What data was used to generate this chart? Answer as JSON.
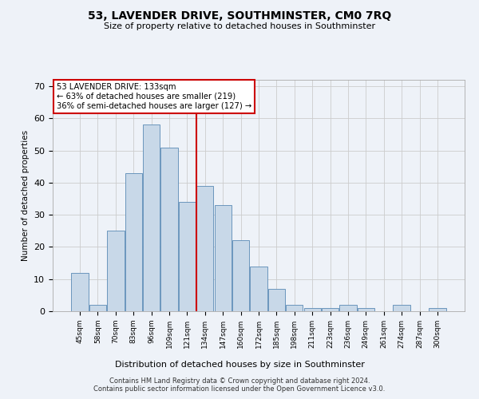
{
  "title": "53, LAVENDER DRIVE, SOUTHMINSTER, CM0 7RQ",
  "subtitle": "Size of property relative to detached houses in Southminster",
  "xlabel": "Distribution of detached houses by size in Southminster",
  "ylabel": "Number of detached properties",
  "bar_labels": [
    "45sqm",
    "58sqm",
    "70sqm",
    "83sqm",
    "96sqm",
    "109sqm",
    "121sqm",
    "134sqm",
    "147sqm",
    "160sqm",
    "172sqm",
    "185sqm",
    "198sqm",
    "211sqm",
    "223sqm",
    "236sqm",
    "249sqm",
    "261sqm",
    "274sqm",
    "287sqm",
    "300sqm"
  ],
  "bar_heights": [
    12,
    2,
    25,
    43,
    58,
    51,
    34,
    39,
    33,
    22,
    14,
    7,
    2,
    1,
    1,
    2,
    1,
    0,
    2,
    0,
    1
  ],
  "bar_color": "#c8d8e8",
  "bar_edge_color": "#5a8ab5",
  "vline_color": "#cc0000",
  "annotation_title": "53 LAVENDER DRIVE: 133sqm",
  "annotation_line1": "← 63% of detached houses are smaller (219)",
  "annotation_line2": "36% of semi-detached houses are larger (127) →",
  "annotation_box_color": "#ffffff",
  "annotation_box_edge": "#cc0000",
  "ylim": [
    0,
    72
  ],
  "yticks": [
    0,
    10,
    20,
    30,
    40,
    50,
    60,
    70
  ],
  "grid_color": "#cccccc",
  "bg_color": "#eef2f8",
  "footer1": "Contains HM Land Registry data © Crown copyright and database right 2024.",
  "footer2": "Contains public sector information licensed under the Open Government Licence v3.0."
}
